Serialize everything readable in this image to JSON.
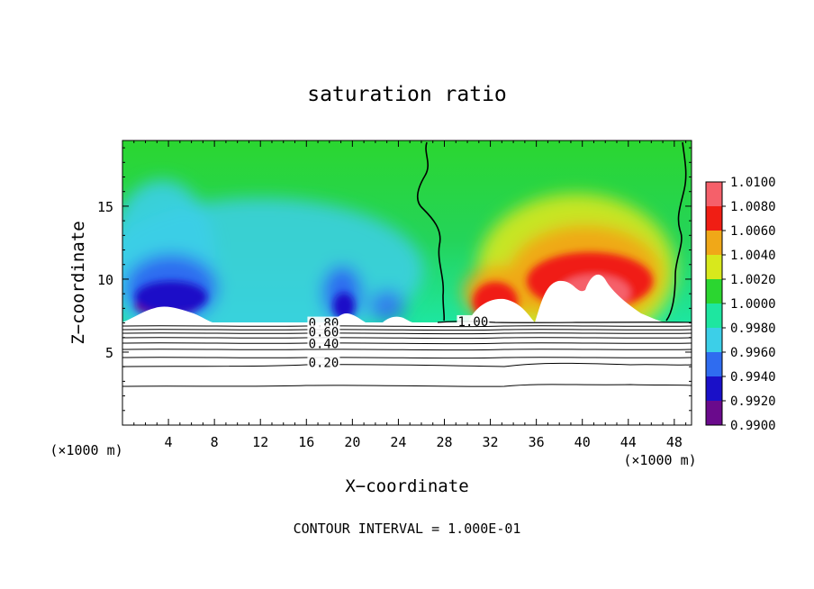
{
  "chart_data": {
    "type": "heatmap",
    "title": "saturation ratio",
    "xlabel": "X−coordinate",
    "ylabel": "Z−coordinate",
    "x_unit_left": "(×1000 m)",
    "x_unit_right": "(×1000 m)",
    "footer": "CONTOUR INTERVAL = 1.000E-01",
    "xlim": [
      0,
      49.5
    ],
    "ylim": [
      0,
      19.5
    ],
    "x_ticks": [
      4,
      8,
      12,
      16,
      20,
      24,
      28,
      32,
      36,
      40,
      44,
      48
    ],
    "y_ticks": [
      5,
      10,
      15
    ],
    "colorbar": {
      "levels": [
        "0.9900",
        "0.9920",
        "0.9940",
        "0.9960",
        "0.9980",
        "1.0000",
        "1.0020",
        "1.0040",
        "1.0060",
        "1.0080",
        "1.0100"
      ],
      "colors": [
        "#6a0a8c",
        "#1a10c8",
        "#2f6cf0",
        "#3ccfe8",
        "#1ee6a0",
        "#2bd630",
        "#d8e81c",
        "#f0a818",
        "#f01e14",
        "#f5606a"
      ]
    },
    "fill_region": {
      "surface_height_km": 7.3,
      "features": [
        {
          "x_center": 4.5,
          "width": 7,
          "z_top": 11.5,
          "value": 0.9915
        },
        {
          "x_center": 7,
          "width": 4,
          "z_top": 13,
          "value": 0.9935
        },
        {
          "x_center": 10,
          "width": 6,
          "z_top": 14,
          "value": 0.9965
        },
        {
          "x_center": 19,
          "width": 4,
          "z_top": 11,
          "value": 0.9935
        },
        {
          "x_center": 23,
          "width": 4,
          "z_top": 9,
          "value": 0.995
        },
        {
          "x_center": 32,
          "width": 4,
          "z_top": 11,
          "value": 1.007
        },
        {
          "x_center": 41,
          "width": 14,
          "z_top": 15,
          "value": 1.006
        }
      ]
    },
    "contours": [
      {
        "level": "1.00",
        "label_x": 30.5,
        "label_z": 7.1
      },
      {
        "level": "0.80",
        "label_x": 17.5,
        "label_z": 7.0
      },
      {
        "level": "0.60",
        "label_x": 17.5,
        "label_z": 6.4
      },
      {
        "level": "0.40",
        "label_x": 17.5,
        "label_z": 5.6
      },
      {
        "level": "0.20",
        "label_x": 17.5,
        "label_z": 4.3
      }
    ]
  }
}
